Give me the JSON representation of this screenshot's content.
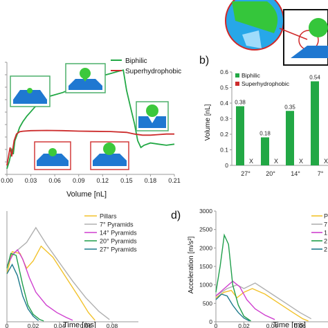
{
  "colors": {
    "biphilic": "#22a845",
    "superhydrophobic": "#cc2b2b",
    "pillars": "#f2c22a",
    "pyr7": "#b0b0b0",
    "pyr14": "#cf3fcf",
    "pyr20": "#1e9e4a",
    "pyr27": "#1d7a8c",
    "block_blue": "#1f78d1",
    "droplet_green": "#3cc83c",
    "panel_border_green": "#4caf6a",
    "panel_border_red": "#d23a3a"
  },
  "chart_data": [
    {
      "panel": "a",
      "type": "line",
      "xlabel": "Volume [nL]",
      "ylabel": "",
      "xlim": [
        0,
        0.21
      ],
      "x_ticks": [
        "0.00",
        "0.03",
        "0.06",
        "0.09",
        "0.12",
        "0.15",
        "0.18",
        "0.21"
      ],
      "legend": "top-right",
      "series": [
        {
          "name": "Biphilic",
          "color_key": "biphilic",
          "points": [
            [
              0.0,
              0.05
            ],
            [
              0.003,
              0.12
            ],
            [
              0.006,
              0.22
            ],
            [
              0.008,
              0.18
            ],
            [
              0.01,
              0.3
            ],
            [
              0.013,
              0.36
            ],
            [
              0.016,
              0.42
            ],
            [
              0.02,
              0.47
            ],
            [
              0.025,
              0.52
            ],
            [
              0.03,
              0.56
            ],
            [
              0.035,
              0.6
            ],
            [
              0.04,
              0.63
            ],
            [
              0.045,
              0.66
            ],
            [
              0.05,
              0.69
            ],
            [
              0.06,
              0.71
            ],
            [
              0.07,
              0.73
            ],
            [
              0.08,
              0.76
            ],
            [
              0.09,
              0.8
            ],
            [
              0.1,
              0.83
            ],
            [
              0.11,
              0.85
            ],
            [
              0.12,
              0.88
            ],
            [
              0.13,
              0.9
            ],
            [
              0.14,
              0.92
            ],
            [
              0.146,
              0.93
            ],
            [
              0.15,
              0.75
            ],
            [
              0.155,
              0.6
            ],
            [
              0.16,
              0.45
            ],
            [
              0.164,
              0.3
            ],
            [
              0.168,
              0.24
            ],
            [
              0.172,
              0.26
            ],
            [
              0.18,
              0.28
            ],
            [
              0.19,
              0.27
            ],
            [
              0.2,
              0.26
            ],
            [
              0.21,
              0.27
            ]
          ]
        },
        {
          "name": "Superhydrophobic",
          "color_key": "superhydrophobic",
          "points": [
            [
              0.0,
              0.08
            ],
            [
              0.004,
              0.24
            ],
            [
              0.006,
              0.16
            ],
            [
              0.009,
              0.3
            ],
            [
              0.012,
              0.36
            ],
            [
              0.016,
              0.38
            ],
            [
              0.02,
              0.385
            ],
            [
              0.03,
              0.39
            ],
            [
              0.05,
              0.392
            ],
            [
              0.07,
              0.39
            ],
            [
              0.09,
              0.386
            ],
            [
              0.11,
              0.384
            ],
            [
              0.13,
              0.382
            ],
            [
              0.15,
              0.375
            ],
            [
              0.16,
              0.36
            ],
            [
              0.17,
              0.35
            ],
            [
              0.18,
              0.35
            ],
            [
              0.19,
              0.355
            ],
            [
              0.2,
              0.36
            ],
            [
              0.21,
              0.36
            ]
          ]
        }
      ]
    },
    {
      "panel": "b",
      "type": "bar",
      "ylabel": "Volume [nL]",
      "ylim": [
        0,
        0.6
      ],
      "y_ticks": [
        "0",
        "0.1",
        "0.2",
        "0.3",
        "0.4",
        "0.5",
        "0.6"
      ],
      "legend": "top-left",
      "categories": [
        "27°",
        "20°",
        "14°",
        "7°"
      ],
      "series": [
        {
          "name": "Biphilic",
          "color_key": "biphilic",
          "values": [
            0.38,
            0.18,
            0.35,
            0.54
          ],
          "labels": [
            "0.38",
            "0.18",
            "0.35",
            "0.54"
          ]
        },
        {
          "name": "Superhydrophobic",
          "color_key": "superhydrophobic",
          "values": [
            0,
            0,
            0,
            0
          ],
          "labels": [
            "X",
            "X",
            "X",
            "X"
          ]
        }
      ]
    },
    {
      "panel": "c",
      "type": "line",
      "xlabel": "Time [ms]",
      "ylabel": "",
      "xlim": [
        0,
        0.1
      ],
      "ylim": [
        0,
        3000
      ],
      "x_ticks": [
        "0",
        "0.02",
        "0.04",
        "0.06",
        "0.08"
      ],
      "legend": "top-right",
      "series": [
        {
          "name": "Pillars",
          "color_key": "pillars",
          "points": [
            [
              0,
              1300
            ],
            [
              0.004,
              1900
            ],
            [
              0.01,
              1850
            ],
            [
              0.015,
              1450
            ],
            [
              0.02,
              1650
            ],
            [
              0.026,
              2050
            ],
            [
              0.035,
              1750
            ],
            [
              0.045,
              1200
            ],
            [
              0.055,
              650
            ],
            [
              0.062,
              250
            ],
            [
              0.067,
              40
            ]
          ]
        },
        {
          "name": "7° Pyramids",
          "color_key": "pyr7",
          "points": [
            [
              0,
              1500
            ],
            [
              0.005,
              1850
            ],
            [
              0.01,
              2000
            ],
            [
              0.015,
              2150
            ],
            [
              0.022,
              2550
            ],
            [
              0.03,
              2100
            ],
            [
              0.04,
              1600
            ],
            [
              0.05,
              1100
            ],
            [
              0.06,
              650
            ],
            [
              0.07,
              280
            ],
            [
              0.078,
              60
            ]
          ]
        },
        {
          "name": "14° Pyramids",
          "color_key": "pyr14",
          "points": [
            [
              0,
              1500
            ],
            [
              0.004,
              1800
            ],
            [
              0.008,
              1950
            ],
            [
              0.012,
              1700
            ],
            [
              0.017,
              1200
            ],
            [
              0.022,
              800
            ],
            [
              0.03,
              450
            ],
            [
              0.038,
              250
            ],
            [
              0.045,
              120
            ],
            [
              0.05,
              40
            ]
          ]
        },
        {
          "name": "20° Pyramids",
          "color_key": "pyr20",
          "points": [
            [
              0,
              1450
            ],
            [
              0.003,
              1850
            ],
            [
              0.007,
              1800
            ],
            [
              0.012,
              1000
            ],
            [
              0.016,
              450
            ],
            [
              0.02,
              200
            ],
            [
              0.025,
              60
            ],
            [
              0.028,
              20
            ]
          ]
        },
        {
          "name": "27° Pyramids",
          "color_key": "pyr27",
          "points": [
            [
              0,
              1300
            ],
            [
              0.004,
              1550
            ],
            [
              0.008,
              1250
            ],
            [
              0.012,
              700
            ],
            [
              0.016,
              350
            ],
            [
              0.02,
              150
            ],
            [
              0.024,
              30
            ]
          ]
        }
      ]
    },
    {
      "panel": "d",
      "type": "line",
      "xlabel": "Time [ms]",
      "ylabel": "Acceleration [m/s²]",
      "xlim": [
        0,
        0.08
      ],
      "ylim": [
        0,
        3000
      ],
      "x_ticks": [
        "0",
        "0.02",
        "0.04",
        "0.06"
      ],
      "y_ticks": [
        "0",
        "500",
        "1000",
        "1500",
        "2000",
        "2500",
        "3000"
      ],
      "legend": "top-right",
      "series": [
        {
          "name": "Pi",
          "color_key": "pillars",
          "points": [
            [
              0,
              650
            ],
            [
              0.006,
              800
            ],
            [
              0.011,
              850
            ],
            [
              0.015,
              650
            ],
            [
              0.02,
              800
            ],
            [
              0.026,
              900
            ],
            [
              0.035,
              750
            ],
            [
              0.045,
              500
            ],
            [
              0.055,
              250
            ],
            [
              0.062,
              80
            ],
            [
              0.066,
              20
            ]
          ]
        },
        {
          "name": "7",
          "color_key": "pyr7",
          "points": [
            [
              0,
              700
            ],
            [
              0.008,
              900
            ],
            [
              0.015,
              1000
            ],
            [
              0.02,
              900
            ],
            [
              0.028,
              1050
            ],
            [
              0.04,
              750
            ],
            [
              0.05,
              500
            ],
            [
              0.06,
              250
            ],
            [
              0.068,
              80
            ]
          ]
        },
        {
          "name": "1",
          "color_key": "pyr14",
          "points": [
            [
              0,
              700
            ],
            [
              0.006,
              900
            ],
            [
              0.012,
              1100
            ],
            [
              0.017,
              950
            ],
            [
              0.022,
              600
            ],
            [
              0.028,
              350
            ],
            [
              0.035,
              180
            ],
            [
              0.042,
              60
            ]
          ]
        },
        {
          "name": "2",
          "color_key": "pyr20",
          "points": [
            [
              0,
              800
            ],
            [
              0.003,
              1500
            ],
            [
              0.006,
              2350
            ],
            [
              0.009,
              2100
            ],
            [
              0.012,
              1000
            ],
            [
              0.016,
              450
            ],
            [
              0.02,
              150
            ],
            [
              0.025,
              20
            ]
          ]
        },
        {
          "name": "2",
          "color_key": "pyr27",
          "points": [
            [
              0,
              600
            ],
            [
              0.004,
              750
            ],
            [
              0.008,
              700
            ],
            [
              0.012,
              450
            ],
            [
              0.016,
              250
            ],
            [
              0.02,
              100
            ],
            [
              0.024,
              20
            ]
          ]
        }
      ]
    }
  ],
  "panel_labels": {
    "b": "b)",
    "d": "d)"
  },
  "annotations": {
    "x_mark": "X"
  }
}
